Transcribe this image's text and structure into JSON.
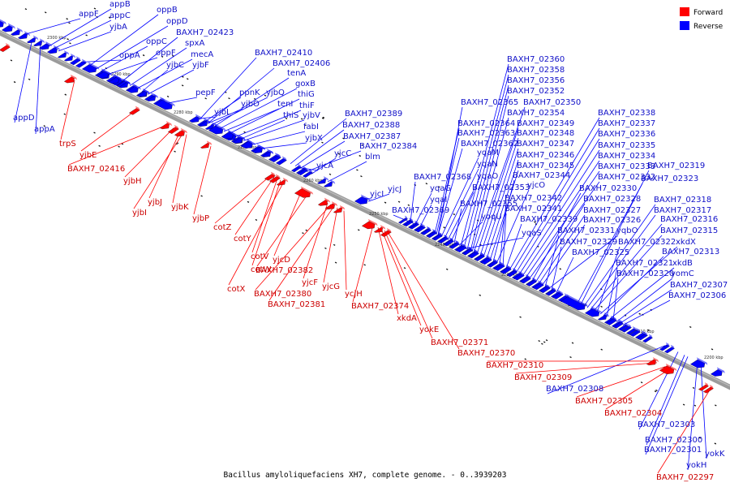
{
  "caption": "Bacillus amyloliquefaciens XH7, complete genome. - 0..3939203",
  "legend": [
    {
      "label": "Forward",
      "color": "#ff0000"
    },
    {
      "label": "Reverse",
      "color": "#0000ff"
    }
  ],
  "colors": {
    "forward": "#ff0000",
    "reverse": "#0000ff",
    "forward_label": "#cc0000",
    "reverse_label": "#1010c8",
    "backbone": "#8a8a8a"
  },
  "ticks": [
    "2300 kbp",
    "2290 kbp",
    "2280 kbp",
    "2270 kbp",
    "2260 kbp",
    "2250 kbp",
    "2240 kbp",
    "2230 kbp",
    "2220 kbp",
    "2210 kbp",
    "2200 kbp"
  ],
  "reverse_labels": [
    "appF",
    "appB",
    "appC",
    "yjbA",
    "oppB",
    "oppD",
    "oppA",
    "oppC",
    "oppF",
    "BAXH7_02423",
    "spxA",
    "mecA",
    "yjbC",
    "yjbF",
    "pepF",
    "BAXH7_02410",
    "BAXH7_02406",
    "tenA",
    "goxB",
    "ppnK",
    "yjbQ",
    "yjbO",
    "tenI",
    "thiG",
    "thiF",
    "yjbL",
    "thiS",
    "yjbV",
    "fabI",
    "yjbX",
    "BAXH7_02389",
    "BAXH7_02388",
    "BAXH7_02387",
    "BAXH7_02384",
    "yjcC",
    "blm",
    "yjcA",
    "yjcJ",
    "yjcI",
    "BAXH7_02360",
    "BAXH7_02358",
    "BAXH7_02356",
    "BAXH7_02352",
    "BAXH7_02365",
    "BAXH7_02350",
    "BAXH7_02354",
    "BAXH7_02364",
    "BAXH7_02349",
    "BAXH7_02363",
    "BAXH7_02348",
    "BAXH7_02362",
    "BAXH7_02347",
    "yqaM",
    "BAXH7_02346",
    "yqaN",
    "BAXH7_02345",
    "yqaO",
    "BAXH7_02344",
    "BAXH7_02368",
    "BAXH7_02353",
    "yjcO",
    "yqaG",
    "yqaI",
    "BAXH7_02355",
    "BAXH7_02342",
    "BAXH7_02341",
    "BAXH7_02369",
    "yoqU",
    "BAXH7_02339",
    "yqaS",
    "BAXH7_02338",
    "BAXH7_02337",
    "BAXH7_02336",
    "BAXH7_02335",
    "BAXH7_02334",
    "BAXH7_02333",
    "BAXH7_02332",
    "BAXH7_02330",
    "BAXH7_02328",
    "BAXH7_02327",
    "BAXH7_02326",
    "BAXH7_02331",
    "yqbO",
    "BAXH7_02329",
    "BAXH7_02325",
    "BAXH7_02323",
    "BAXH7_02319",
    "BAXH7_02318",
    "BAXH7_02317",
    "BAXH7_02316",
    "BAXH7_02315",
    "BAXH7_02322",
    "xkdX",
    "BAXH7_02313",
    "BAXH7_02321",
    "xkdB",
    "BAXH7_02320",
    "yomC",
    "BAXH7_02307",
    "BAXH7_02306",
    "BAXH7_02308",
    "BAXH7_02303",
    "BAXH7_02300",
    "BAXH7_02301",
    "yokK",
    "yokH",
    "appD",
    "appA"
  ],
  "forward_labels": [
    "trpS",
    "yjbE",
    "BAXH7_02416",
    "yjbH",
    "yjbJ",
    "yjbI",
    "yjbK",
    "yjbP",
    "cotZ",
    "cotY",
    "cotV",
    "cotW",
    "cotX",
    "yjcD",
    "BAXH7_02382",
    "yjcF",
    "BAXH7_02380",
    "BAXH7_02381",
    "yjcG",
    "ycjH",
    "BAXH7_02374",
    "xkdA",
    "yokE",
    "BAXH7_02371",
    "BAXH7_02370",
    "BAXH7_02310",
    "BAXH7_02309",
    "BAXH7_02305",
    "BAXH7_02304",
    "BAXH7_02297"
  ]
}
